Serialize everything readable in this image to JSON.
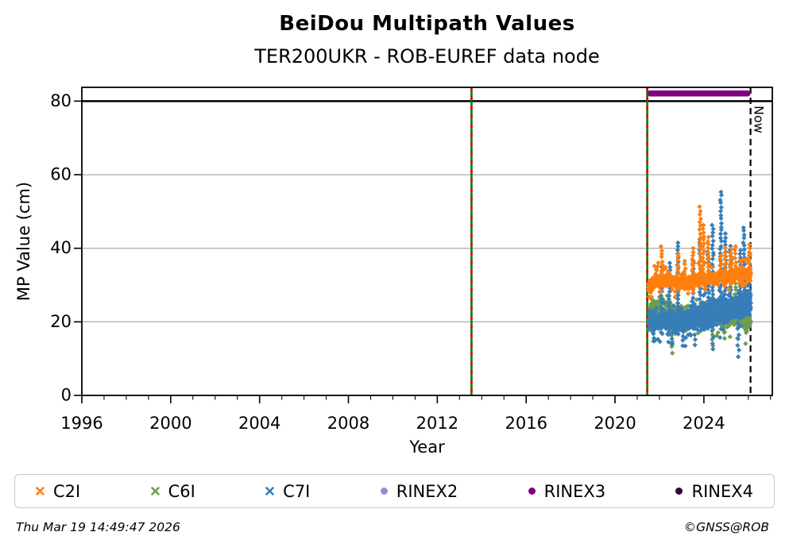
{
  "footer": {
    "timestamp": "Thu Mar 19 14:49:47 2026",
    "credit": "©GNSS@ROB"
  },
  "chart_data": {
    "type": "scatter",
    "title": "BeiDou Multipath Values",
    "subtitle": "TER200UKR - ROB-EUREF data node",
    "xlabel": "Year",
    "ylabel": "MP Value (cm)",
    "xlim": [
      1996,
      2027.08
    ],
    "ylim": [
      0,
      83.75
    ],
    "x_ticks": [
      1996,
      2000,
      2004,
      2008,
      2012,
      2016,
      2020,
      2024
    ],
    "x_minor_step": 1,
    "y_ticks": [
      0,
      20,
      40,
      60,
      80
    ],
    "grid": true,
    "grid_color": "#b0b0b0",
    "threshold_line_y": 80,
    "event_lines": {
      "years": [
        2013.54,
        2021.45
      ],
      "line_color": "#008000",
      "dash_color": "#e8000b"
    },
    "now_line": {
      "year": 2026.1,
      "label": "Now",
      "color": "#000000"
    },
    "availability_bars": [
      {
        "name": "RINEX3",
        "start": 2021.45,
        "end": 2026.1,
        "y": 82.1,
        "color": "#800080"
      }
    ],
    "series": [
      {
        "name": "C2I",
        "color": "#ff7f0e",
        "marker": "diamond",
        "z": 3,
        "n": 1150,
        "sigma": [
          0.95,
          1.1
        ],
        "outliers": {
          "prob": 0.07,
          "down": [
            1,
            3
          ],
          "up": [
            1.5,
            4.5
          ]
        },
        "trend": [
          [
            2021.52,
            29.4
          ],
          [
            2021.8,
            31.2
          ],
          [
            2022.3,
            31.4
          ],
          [
            2022.9,
            30.7
          ],
          [
            2023.6,
            31.1
          ],
          [
            2024.3,
            31.9
          ],
          [
            2024.9,
            32.2
          ],
          [
            2025.5,
            33.3
          ],
          [
            2025.9,
            32.6
          ],
          [
            2026.1,
            33.0
          ]
        ]
      },
      {
        "name": "C6I",
        "color": "#6d9e4f",
        "marker": "diamond",
        "z": 1,
        "n": 520,
        "sigma": [
          1.9,
          1.6
        ],
        "outliers": {
          "prob": 0.1,
          "down": [
            1,
            5
          ],
          "up": [
            1,
            4
          ]
        },
        "trend": [
          [
            2021.52,
            23.4
          ],
          [
            2022.5,
            22.4
          ],
          [
            2023.5,
            21.8
          ],
          [
            2024.5,
            21.3
          ],
          [
            2025.5,
            20.7
          ],
          [
            2026.1,
            20.3
          ]
        ]
      },
      {
        "name": "C7I",
        "color": "#377eb8",
        "marker": "diamond",
        "z": 2,
        "n": 1650,
        "sigma": [
          1.3,
          2.3
        ],
        "outliers": {
          "prob": 0.07,
          "down": [
            1.5,
            5.5
          ],
          "up": [
            1,
            3.5
          ]
        },
        "trend": [
          [
            2021.52,
            19.7
          ],
          [
            2022.2,
            20.3
          ],
          [
            2022.8,
            19.9
          ],
          [
            2023.4,
            20.6
          ],
          [
            2024.0,
            21.3
          ],
          [
            2024.6,
            22.6
          ],
          [
            2025.1,
            23.5
          ],
          [
            2025.6,
            24.4
          ],
          [
            2026.1,
            24.8
          ]
        ]
      }
    ],
    "spike_events": [
      {
        "year": 2022.1,
        "peaks": {
          "C2I": 40.5,
          "C7I": 35.0
        }
      },
      {
        "year": 2022.45,
        "peaks": {
          "C7I": 36.0
        }
      },
      {
        "year": 2022.82,
        "peaks": {
          "C2I": 38.5,
          "C7I": 41.5,
          "C6I": 29.0
        }
      },
      {
        "year": 2023.14,
        "peaks": {
          "C2I": 36.5
        }
      },
      {
        "year": 2023.5,
        "peaks": {
          "C2I": 40.0,
          "C7I": 36.5
        }
      },
      {
        "year": 2023.83,
        "peaks": {
          "C2I": 51.3,
          "C7I": 42.5
        }
      },
      {
        "year": 2023.98,
        "peaks": {
          "C2I": 46.3
        }
      },
      {
        "year": 2024.2,
        "peaks": {
          "C2I": 43.0,
          "C7I": 40.0
        }
      },
      {
        "year": 2024.4,
        "peaks": {
          "C7I": 46.3
        }
      },
      {
        "year": 2024.76,
        "peaks": {
          "C7I": 55.3,
          "C2I": 38.0
        }
      },
      {
        "year": 2024.97,
        "peaks": {
          "C7I": 44.0,
          "C2I": 40.0
        }
      },
      {
        "year": 2025.2,
        "peaks": {
          "C7I": 40.6,
          "C2I": 39.9
        }
      },
      {
        "year": 2025.42,
        "peaks": {
          "C2I": 40.5,
          "C6I": 30.5
        }
      },
      {
        "year": 2025.62,
        "peaks": {
          "C7I": 39.4
        }
      },
      {
        "year": 2025.8,
        "peaks": {
          "C7I": 45.6
        }
      },
      {
        "year": 2026.05,
        "peaks": {
          "C2I": 41.0,
          "C7I": 40.0
        }
      }
    ],
    "low_outlier_events": [
      {
        "year": 2022.55,
        "lows": {
          "C7I": 14.0,
          "C6I": 11.5
        }
      },
      {
        "year": 2023.05,
        "lows": {
          "C7I": 13.5
        }
      },
      {
        "year": 2023.6,
        "lows": {
          "C7I": 13.7
        }
      },
      {
        "year": 2024.4,
        "lows": {
          "C7I": 12.6,
          "C6I": 13.5
        }
      },
      {
        "year": 2024.9,
        "lows": {
          "C6I": 15.5
        }
      },
      {
        "year": 2025.55,
        "lows": {
          "C7I": 10.5
        }
      },
      {
        "year": 2025.9,
        "lows": {
          "C6I": 17.5
        }
      }
    ],
    "legend": [
      {
        "label": "C2I",
        "color": "#ff7f0e",
        "glyph": "x"
      },
      {
        "label": "C6I",
        "color": "#6d9e4f",
        "glyph": "x"
      },
      {
        "label": "C7I",
        "color": "#377eb8",
        "glyph": "x"
      },
      {
        "label": "RINEX2",
        "color": "#9090d2",
        "glyph": "dot"
      },
      {
        "label": "RINEX3",
        "color": "#800080",
        "glyph": "dot"
      },
      {
        "label": "RINEX4",
        "color": "#2b0a33",
        "glyph": "dot"
      }
    ]
  }
}
